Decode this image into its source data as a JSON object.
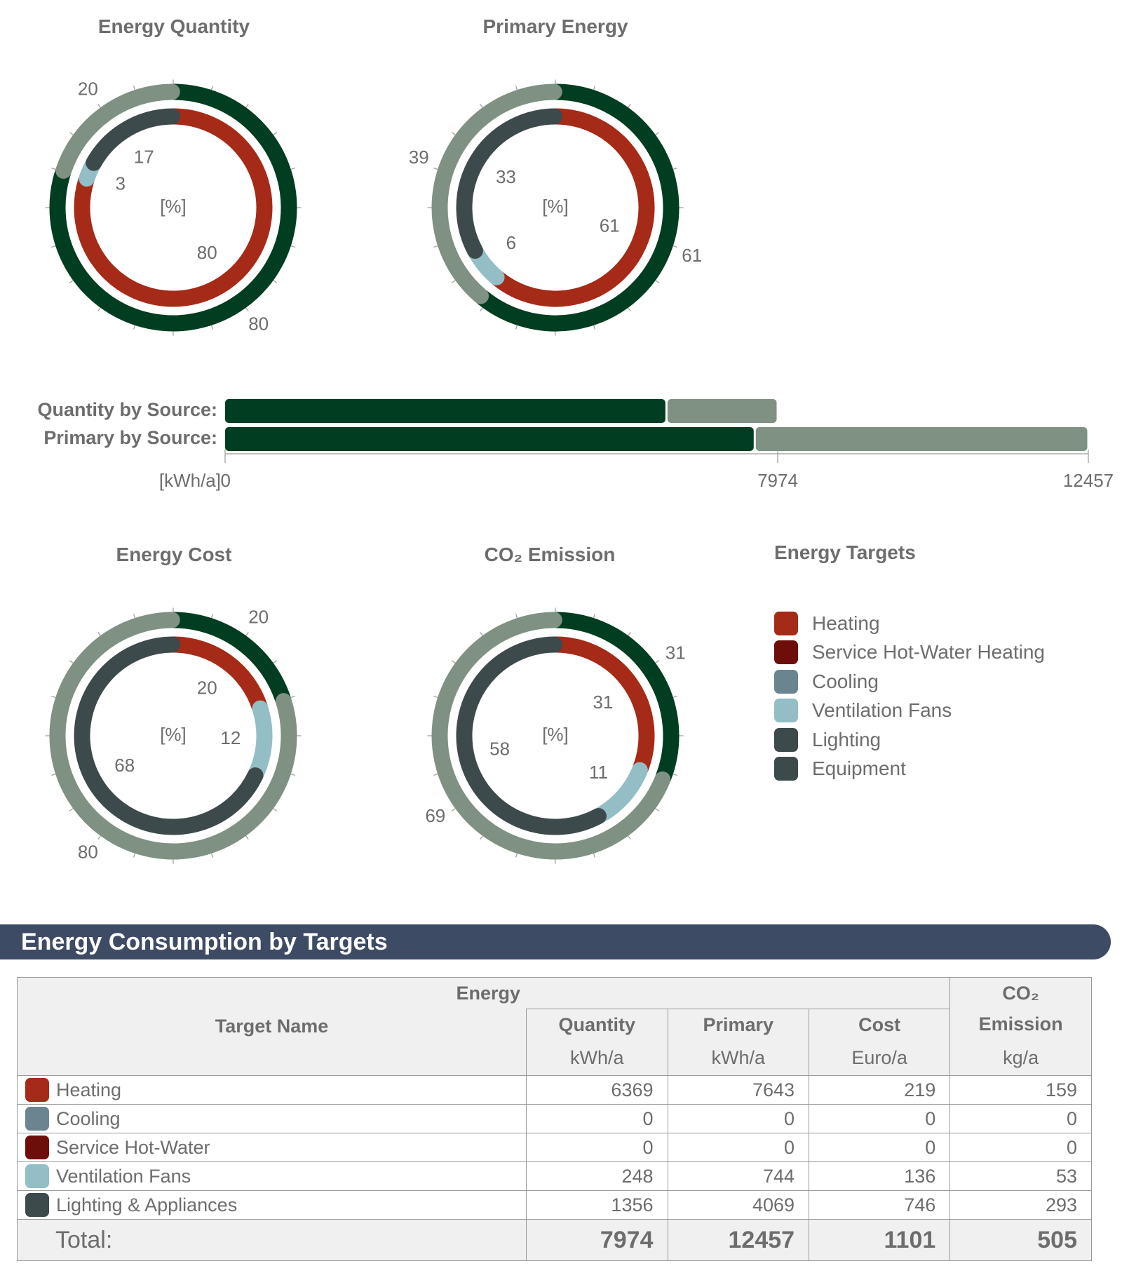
{
  "chart_data": [
    {
      "type": "pie",
      "title": "Energy Quantity",
      "center_label": "[%]",
      "outer": {
        "values": [
          80,
          20
        ],
        "labels": [
          "80",
          "20"
        ],
        "colors": [
          "#003d21",
          "#7f9183"
        ]
      },
      "inner": {
        "values": [
          80,
          3,
          17
        ],
        "labels": [
          "80",
          "3",
          "17"
        ],
        "colors": [
          "#a52a17",
          "#94bec6",
          "#3d4a4b"
        ]
      }
    },
    {
      "type": "pie",
      "title": "Primary Energy",
      "center_label": "[%]",
      "outer": {
        "values": [
          61,
          39
        ],
        "labels": [
          "61",
          "39"
        ],
        "colors": [
          "#003d21",
          "#7f9183"
        ]
      },
      "inner": {
        "values": [
          61,
          6,
          33
        ],
        "labels": [
          "61",
          "6",
          "33"
        ],
        "colors": [
          "#a52a17",
          "#94bec6",
          "#3d4a4b"
        ]
      }
    },
    {
      "type": "bar",
      "orientation": "horizontal",
      "stacked": true,
      "categories": [
        "Quantity by Source:",
        "Primary by Source:"
      ],
      "series": [
        {
          "values": [
            6369,
            7643
          ],
          "color": "#003d21"
        },
        {
          "values": [
            1605,
            4814
          ],
          "color": "#7f9183"
        }
      ],
      "axis_unit": "[kWh/a]",
      "ticks": [
        "0",
        "7974",
        "12457"
      ],
      "tick_values": [
        0,
        7974,
        12457
      ],
      "xlim": [
        0,
        12457
      ]
    },
    {
      "type": "pie",
      "title": "Energy Cost",
      "center_label": "[%]",
      "outer": {
        "values": [
          20,
          80
        ],
        "labels": [
          "20",
          "80"
        ],
        "colors": [
          "#003d21",
          "#7f9183"
        ]
      },
      "inner": {
        "values": [
          20,
          12,
          68
        ],
        "labels": [
          "20",
          "12",
          "68"
        ],
        "colors": [
          "#a52a17",
          "#94bec6",
          "#3d4a4b"
        ]
      }
    },
    {
      "type": "pie",
      "title": "CO₂ Emission",
      "center_label": "[%]",
      "outer": {
        "values": [
          31,
          69
        ],
        "labels": [
          "31",
          "69"
        ],
        "colors": [
          "#003d21",
          "#7f9183"
        ]
      },
      "inner": {
        "values": [
          31,
          11,
          58
        ],
        "labels": [
          "31",
          "11",
          "58"
        ],
        "colors": [
          "#a52a17",
          "#94bec6",
          "#3d4a4b"
        ]
      }
    }
  ],
  "legend": {
    "title": "Energy Targets",
    "items": [
      {
        "label": "Heating",
        "color": "#a52a17"
      },
      {
        "label": "Service Hot-Water Heating",
        "color": "#6e0e0a"
      },
      {
        "label": "Cooling",
        "color": "#6b8590"
      },
      {
        "label": "Ventilation Fans",
        "color": "#94bec6"
      },
      {
        "label": "Lighting",
        "color": "#3d4a4b"
      },
      {
        "label": "Equipment",
        "color": "#3d4a4b"
      }
    ]
  },
  "section": {
    "title": "Energy Consumption by Targets"
  },
  "table": {
    "group_energy": "Energy",
    "col_target": "Target Name",
    "col_quantity": "Quantity",
    "col_primary": "Primary",
    "col_cost": "Cost",
    "col_co2_line1": "CO₂",
    "col_co2_line2": "Emission",
    "unit_quantity": "kWh/a",
    "unit_primary": "kWh/a",
    "unit_cost": "Euro/a",
    "unit_co2": "kg/a",
    "rows": [
      {
        "name": "Heating",
        "color": "#a52a17",
        "quantity": "6369",
        "primary": "7643",
        "cost": "219",
        "co2": "159"
      },
      {
        "name": "Cooling",
        "color": "#6b8590",
        "quantity": "0",
        "primary": "0",
        "cost": "0",
        "co2": "0"
      },
      {
        "name": "Service Hot-Water",
        "color": "#6e0e0a",
        "quantity": "0",
        "primary": "0",
        "cost": "0",
        "co2": "0"
      },
      {
        "name": "Ventilation Fans",
        "color": "#94bec6",
        "quantity": "248",
        "primary": "744",
        "cost": "136",
        "co2": "53"
      },
      {
        "name": "Lighting & Appliances",
        "color": "#3d4a4b",
        "quantity": "1356",
        "primary": "4069",
        "cost": "746",
        "co2": "293"
      }
    ],
    "total": {
      "label": "Total:",
      "quantity": "7974",
      "primary": "12457",
      "cost": "1101",
      "co2": "505"
    }
  }
}
